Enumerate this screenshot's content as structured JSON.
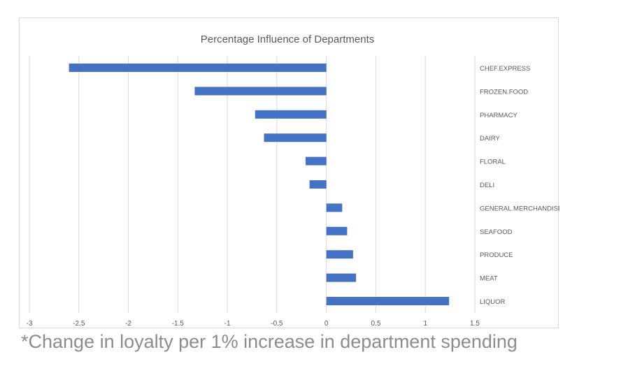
{
  "chart_data": {
    "type": "bar",
    "orientation": "horizontal",
    "title": "Percentage Influence of Departments",
    "categories": [
      "CHEF.EXPRESS",
      "FROZEN.FOOD",
      "PHARMACY",
      "DAIRY",
      "FLORAL",
      "DELI",
      "GENERAL.MERCHANDISE",
      "SEAFOOD",
      "PRODUCE",
      "MEAT",
      "LIQUOR"
    ],
    "values": [
      -2.6,
      -1.33,
      -0.72,
      -0.63,
      -0.21,
      -0.17,
      0.16,
      0.21,
      0.27,
      0.3,
      1.24
    ],
    "xlim": [
      -3,
      1.5
    ],
    "x_ticks": [
      "-3",
      "-2.5",
      "-2",
      "-1.5",
      "-1",
      "-0.5",
      "0",
      "0.5",
      "1",
      "1.5"
    ],
    "grid": true,
    "bar_color": "#4472c4"
  },
  "footnote": "*Change in loyalty per 1% increase in department spending"
}
